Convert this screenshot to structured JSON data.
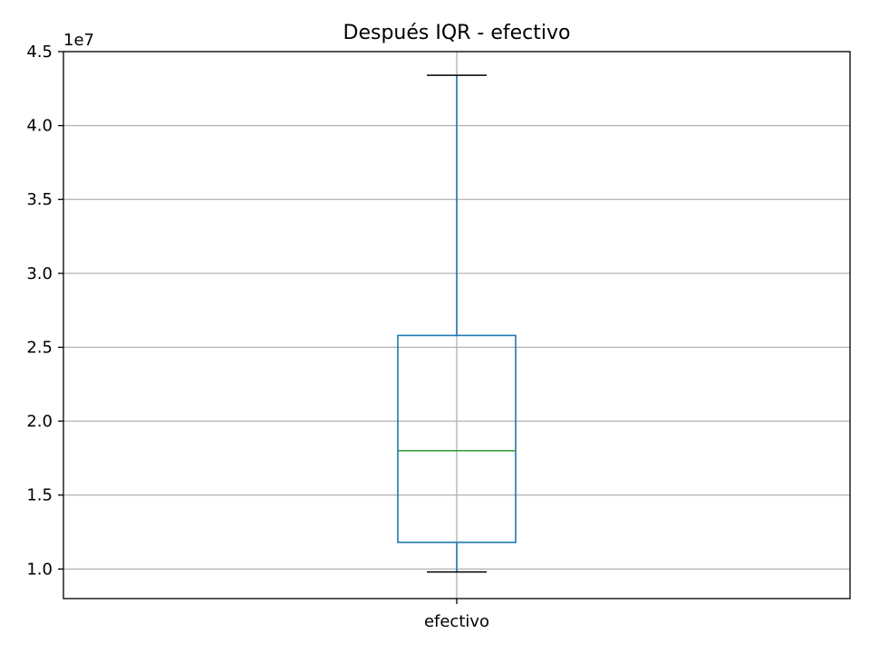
{
  "chart_data": {
    "type": "box",
    "title": "Después IQR - efectivo",
    "xlabel": "",
    "ylabel": "",
    "offset_label": "1e7",
    "categories": [
      "efectivo"
    ],
    "ylim": [
      0.8,
      4.5
    ],
    "yticks": [
      1.0,
      1.5,
      2.0,
      2.5,
      3.0,
      3.5,
      4.0,
      4.5
    ],
    "ytick_labels": [
      "1.0",
      "1.5",
      "2.0",
      "2.5",
      "3.0",
      "3.5",
      "4.0",
      "4.5"
    ],
    "grid": true,
    "boxes": [
      {
        "category": "efectivo",
        "whisker_low": 0.98,
        "q1": 1.18,
        "median": 1.8,
        "q3": 2.58,
        "whisker_high": 4.34
      }
    ],
    "colors": {
      "box": "#1f77b4",
      "median": "#2ca02c",
      "cap": "#000000",
      "grid": "#b0b0b0",
      "axes": "#000000"
    }
  }
}
